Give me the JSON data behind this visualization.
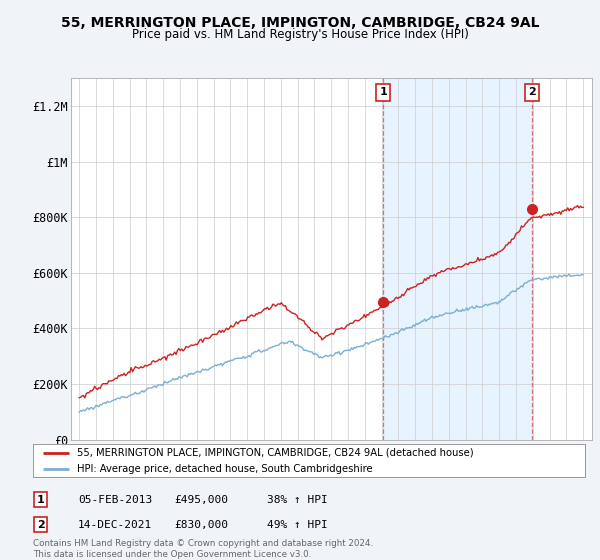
{
  "title_line1": "55, MERRINGTON PLACE, IMPINGTON, CAMBRIDGE, CB24 9AL",
  "title_line2": "Price paid vs. HM Land Registry's House Price Index (HPI)",
  "ylim": [
    0,
    1300000
  ],
  "yticks": [
    0,
    200000,
    400000,
    600000,
    800000,
    1000000,
    1200000
  ],
  "ytick_labels": [
    "£0",
    "£200K",
    "£400K",
    "£600K",
    "£800K",
    "£1M",
    "£1.2M"
  ],
  "hpi_color": "#7bafd4",
  "hpi_fill_color": "#ddeeff",
  "price_color": "#cc2222",
  "sale1_year": 2013.1,
  "sale1_y": 495000,
  "sale2_year": 2021.95,
  "sale2_y": 830000,
  "sale1_label": "1",
  "sale2_label": "2",
  "legend_line1": "55, MERRINGTON PLACE, IMPINGTON, CAMBRIDGE, CB24 9AL (detached house)",
  "legend_line2": "HPI: Average price, detached house, South Cambridgeshire",
  "table_row1": [
    "1",
    "05-FEB-2013",
    "£495,000",
    "38% ↑ HPI"
  ],
  "table_row2": [
    "2",
    "14-DEC-2021",
    "£830,000",
    "49% ↑ HPI"
  ],
  "footer": "Contains HM Land Registry data © Crown copyright and database right 2024.\nThis data is licensed under the Open Government Licence v3.0.",
  "background_color": "#f0f4f8",
  "plot_bg_color": "#ffffff",
  "grid_color": "#cccccc",
  "xmin": 1995,
  "xmax": 2025
}
